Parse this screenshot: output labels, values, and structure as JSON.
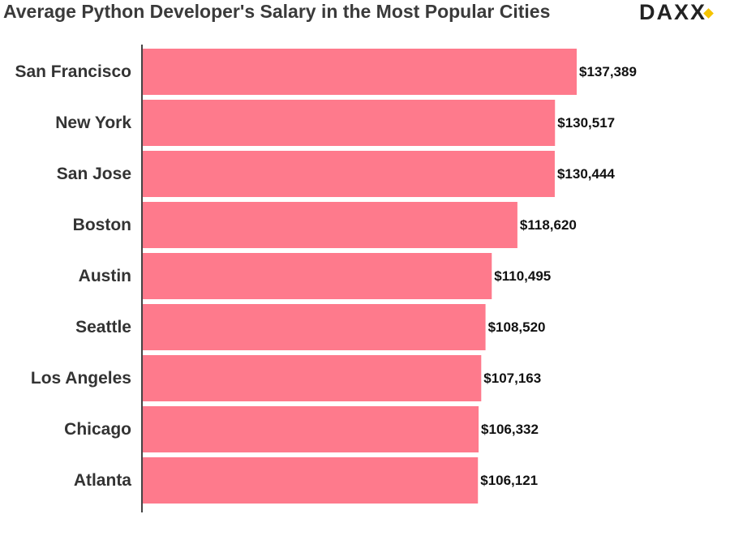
{
  "chart_data": {
    "type": "bar",
    "orientation": "horizontal",
    "title": "Average Python Developer's Salary in the Most Popular Cities",
    "logo": "DAXX",
    "categories": [
      "San Francisco",
      "New York",
      "San Jose",
      "Boston",
      "Austin",
      "Seattle",
      "Los Angeles",
      "Chicago",
      "Atlanta"
    ],
    "values": [
      137389,
      130517,
      130444,
      118620,
      110495,
      108520,
      107163,
      106332,
      106121
    ],
    "value_labels": [
      "$137,389",
      "$130,517",
      "$130,444",
      "$118,620",
      "$110,495",
      "$108,520",
      "$107,163",
      "$106,332",
      "$106,121"
    ],
    "color": "#fe7a8c"
  }
}
